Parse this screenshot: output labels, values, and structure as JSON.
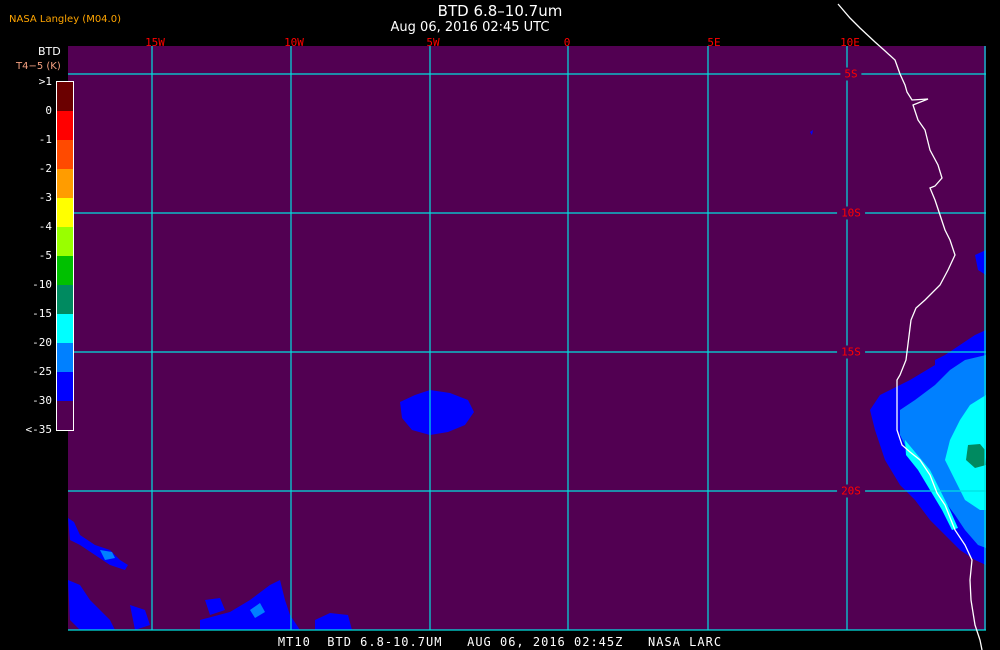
{
  "header": {
    "title": "BTD 6.8–10.7um",
    "subtitle": "Aug 06, 2016 02:45 UTC",
    "producer": "NASA Langley (M04.0)"
  },
  "colorbar": {
    "title": "BTD",
    "unit": "T4−5 (K)",
    "labels": [
      ">1",
      "0",
      "-1",
      "-2",
      "-3",
      "-4",
      "-5",
      "-10",
      "-15",
      "-20",
      "-25",
      "-30",
      "<-35"
    ],
    "colors": [
      "#6b0000",
      "#ff0000",
      "#ff4a00",
      "#ff9c00",
      "#ffff00",
      "#99ff00",
      "#00c000",
      "#008a60",
      "#00ffff",
      "#0080ff",
      "#0000ff",
      "#520052"
    ]
  },
  "map": {
    "background_color": "#520052",
    "grid_color": "#00e0e0",
    "coastline_color": "#ffffff",
    "longitude_labels": [
      "15W",
      "10W",
      "5W",
      "0",
      "5E",
      "10E"
    ],
    "latitude_labels": [
      "5S",
      "10S",
      "15S",
      "20S"
    ]
  },
  "footer": {
    "text": "MT10  BTD 6.8-10.7UM   AUG 06, 2016 02:45Z   NASA LARC"
  }
}
